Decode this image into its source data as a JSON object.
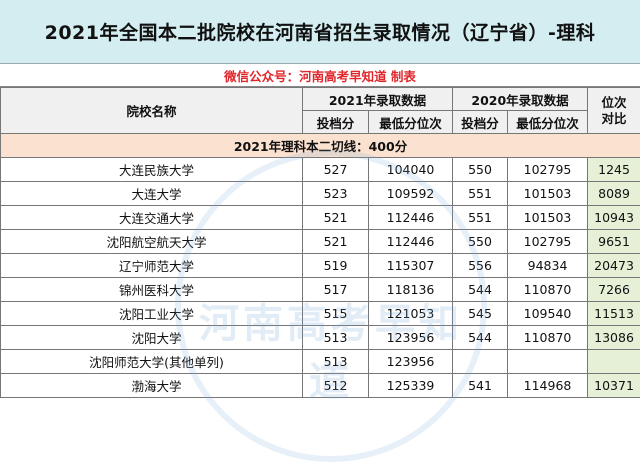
{
  "title": "2021年全国本二批院校在河南省招生录取情况（辽宁省）-理科",
  "wechat_note": "微信公众号：河南高考早知道 制表",
  "headers": {
    "school": "院校名称",
    "y2021": "2021年录取数据",
    "y2020": "2020年录取数据",
    "rank_compare_line1": "位次",
    "rank_compare_line2": "对比",
    "score": "投档分",
    "min_rank": "最低分位次",
    "score_2020": "投档分",
    "min_rank_2020": "最低分位次"
  },
  "cutline": "2021年理科本二切线：400分",
  "rows": [
    {
      "school": "大连民族大学",
      "score2021": "527",
      "rank2021": "104040",
      "score2020": "550",
      "rank2020": "102795",
      "diff": "1245"
    },
    {
      "school": "大连大学",
      "score2021": "523",
      "rank2021": "109592",
      "score2020": "551",
      "rank2020": "101503",
      "diff": "8089"
    },
    {
      "school": "大连交通大学",
      "score2021": "521",
      "rank2021": "112446",
      "score2020": "551",
      "rank2020": "101503",
      "diff": "10943"
    },
    {
      "school": "沈阳航空航天大学",
      "score2021": "521",
      "rank2021": "112446",
      "score2020": "550",
      "rank2020": "102795",
      "diff": "9651"
    },
    {
      "school": "辽宁师范大学",
      "score2021": "519",
      "rank2021": "115307",
      "score2020": "556",
      "rank2020": "94834",
      "diff": "20473"
    },
    {
      "school": "锦州医科大学",
      "score2021": "517",
      "rank2021": "118136",
      "score2020": "544",
      "rank2020": "110870",
      "diff": "7266"
    },
    {
      "school": "沈阳工业大学",
      "score2021": "515",
      "rank2021": "121053",
      "score2020": "545",
      "rank2020": "109540",
      "diff": "11513"
    },
    {
      "school": "沈阳大学",
      "score2021": "513",
      "rank2021": "123956",
      "score2020": "544",
      "rank2020": "110870",
      "diff": "13086"
    },
    {
      "school": "沈阳师范大学(其他单列)",
      "score2021": "513",
      "rank2021": "123956",
      "score2020": "",
      "rank2020": "",
      "diff": ""
    },
    {
      "school": "渤海大学",
      "score2021": "512",
      "rank2021": "125339",
      "score2020": "541",
      "rank2020": "114968",
      "diff": "10371"
    }
  ],
  "watermark_text": "河南高考早知道"
}
